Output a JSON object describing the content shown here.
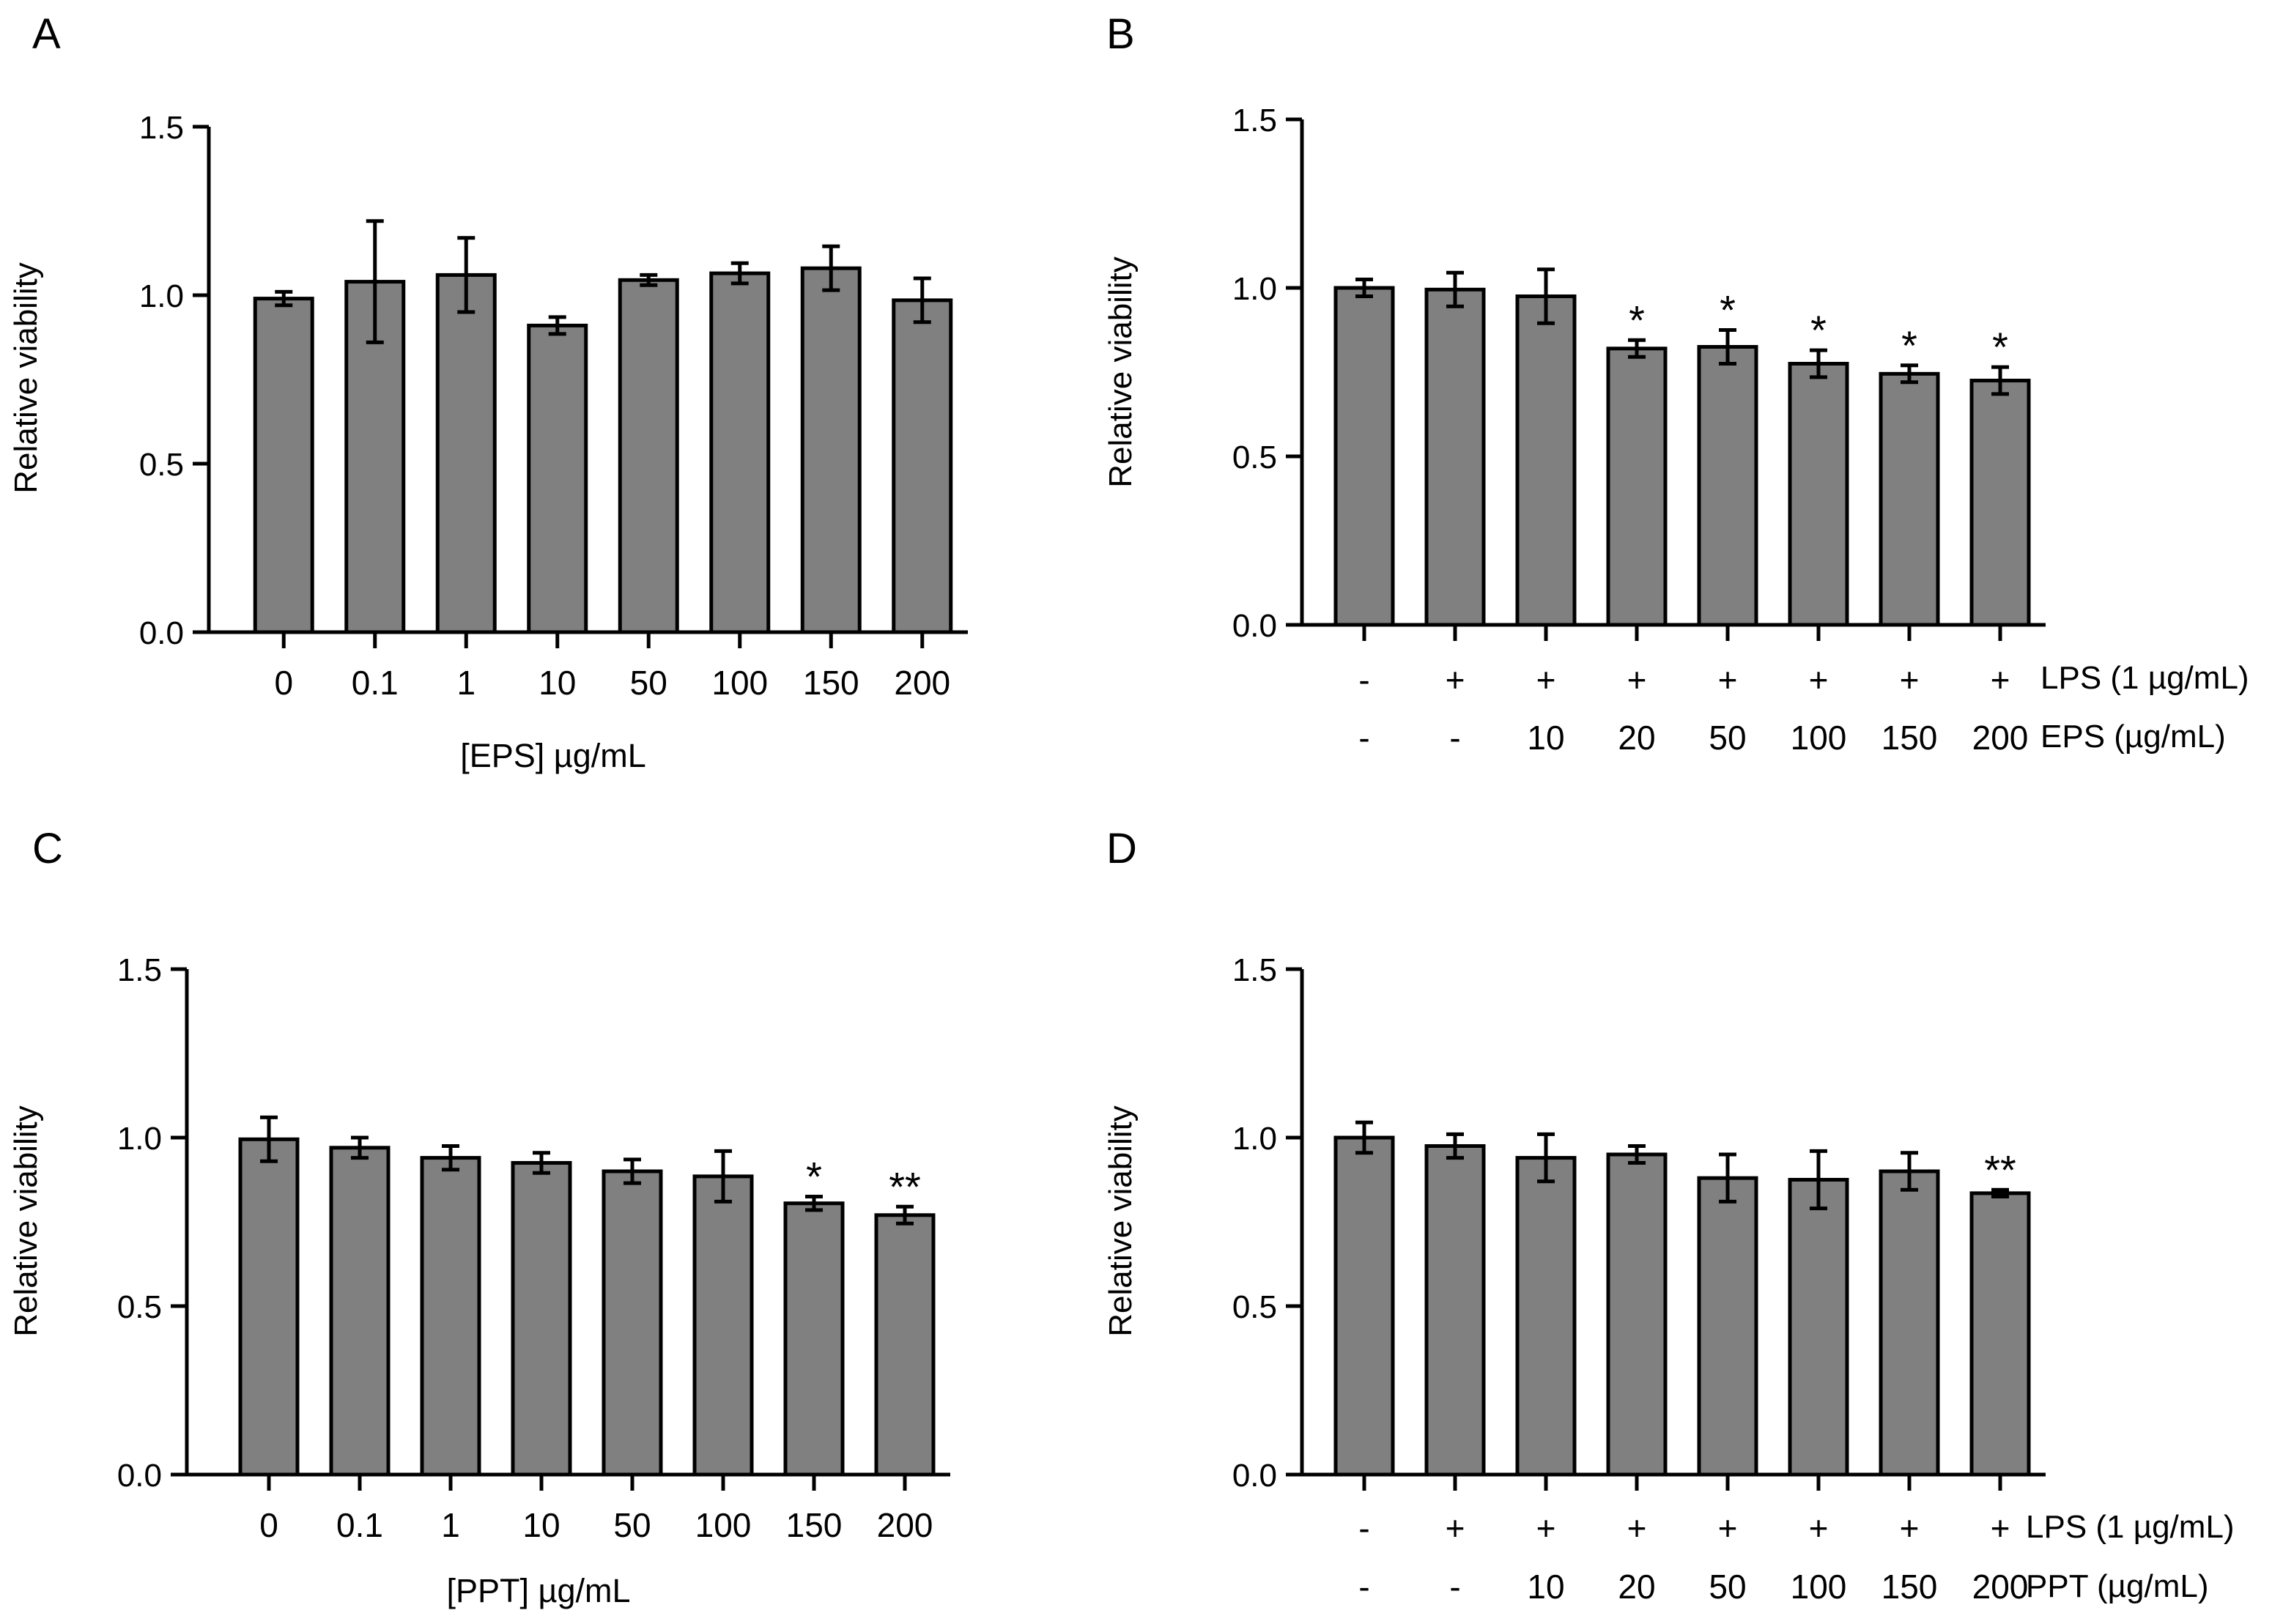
{
  "colors": {
    "bar_fill": "#808080",
    "stroke": "#000000",
    "background": "#ffffff"
  },
  "chart_data": [
    {
      "panel": "A",
      "type": "bar",
      "ylabel": "Relative viability",
      "xlabel": "[EPS] µg/mL",
      "ylim": [
        0,
        1.5
      ],
      "yticks": [
        "0.0",
        "0.5",
        "1.0",
        "1.5"
      ],
      "categories": [
        "0",
        "0.1",
        "1",
        "10",
        "50",
        "100",
        "150",
        "200"
      ],
      "values": [
        0.99,
        1.04,
        1.06,
        0.91,
        1.045,
        1.065,
        1.08,
        0.985
      ],
      "errors": [
        0.02,
        0.18,
        0.11,
        0.025,
        0.015,
        0.03,
        0.065,
        0.065
      ],
      "significance": [
        "",
        "",
        "",
        "",
        "",
        "",
        "",
        ""
      ]
    },
    {
      "panel": "B",
      "type": "bar",
      "ylabel": "Relative viability",
      "ylim": [
        0,
        1.5
      ],
      "yticks": [
        "0.0",
        "0.5",
        "1.0",
        "1.5"
      ],
      "rows": [
        {
          "label": "LPS (1 µg/mL)",
          "values": [
            "-",
            "+",
            "+",
            "+",
            "+",
            "+",
            "+",
            "+"
          ]
        },
        {
          "label": "EPS (µg/mL)",
          "values": [
            "-",
            "-",
            "10",
            "20",
            "50",
            "100",
            "150",
            "200"
          ]
        }
      ],
      "values": [
        1.0,
        0.995,
        0.975,
        0.82,
        0.825,
        0.775,
        0.745,
        0.725
      ],
      "errors": [
        0.025,
        0.05,
        0.08,
        0.025,
        0.05,
        0.04,
        0.025,
        0.04
      ],
      "significance": [
        "",
        "",
        "",
        "*",
        "*",
        "*",
        "*",
        "*"
      ]
    },
    {
      "panel": "C",
      "type": "bar",
      "ylabel": "Relative viability",
      "xlabel": "[PPT] µg/mL",
      "ylim": [
        0,
        1.5
      ],
      "yticks": [
        "0.0",
        "0.5",
        "1.0",
        "1.5"
      ],
      "categories": [
        "0",
        "0.1",
        "1",
        "10",
        "50",
        "100",
        "150",
        "200"
      ],
      "values": [
        0.995,
        0.97,
        0.94,
        0.925,
        0.9,
        0.885,
        0.805,
        0.77
      ],
      "errors": [
        0.065,
        0.03,
        0.035,
        0.03,
        0.035,
        0.075,
        0.02,
        0.025
      ],
      "significance": [
        "",
        "",
        "",
        "",
        "",
        "",
        "*",
        "**"
      ]
    },
    {
      "panel": "D",
      "type": "bar",
      "ylabel": "Relative viability",
      "ylim": [
        0,
        1.5
      ],
      "yticks": [
        "0.0",
        "0.5",
        "1.0",
        "1.5"
      ],
      "rows": [
        {
          "label": "LPS (1 µg/mL)",
          "values": [
            "-",
            "+",
            "+",
            "+",
            "+",
            "+",
            "+",
            "+"
          ]
        },
        {
          "label": "PPT (µg/mL)",
          "values": [
            "-",
            "-",
            "10",
            "20",
            "50",
            "100",
            "150",
            "200"
          ]
        }
      ],
      "values": [
        1.0,
        0.975,
        0.94,
        0.95,
        0.88,
        0.875,
        0.9,
        0.835
      ],
      "errors": [
        0.045,
        0.035,
        0.07,
        0.025,
        0.07,
        0.085,
        0.055,
        0.01
      ],
      "significance": [
        "",
        "",
        "",
        "",
        "",
        "",
        "",
        "**"
      ]
    }
  ]
}
